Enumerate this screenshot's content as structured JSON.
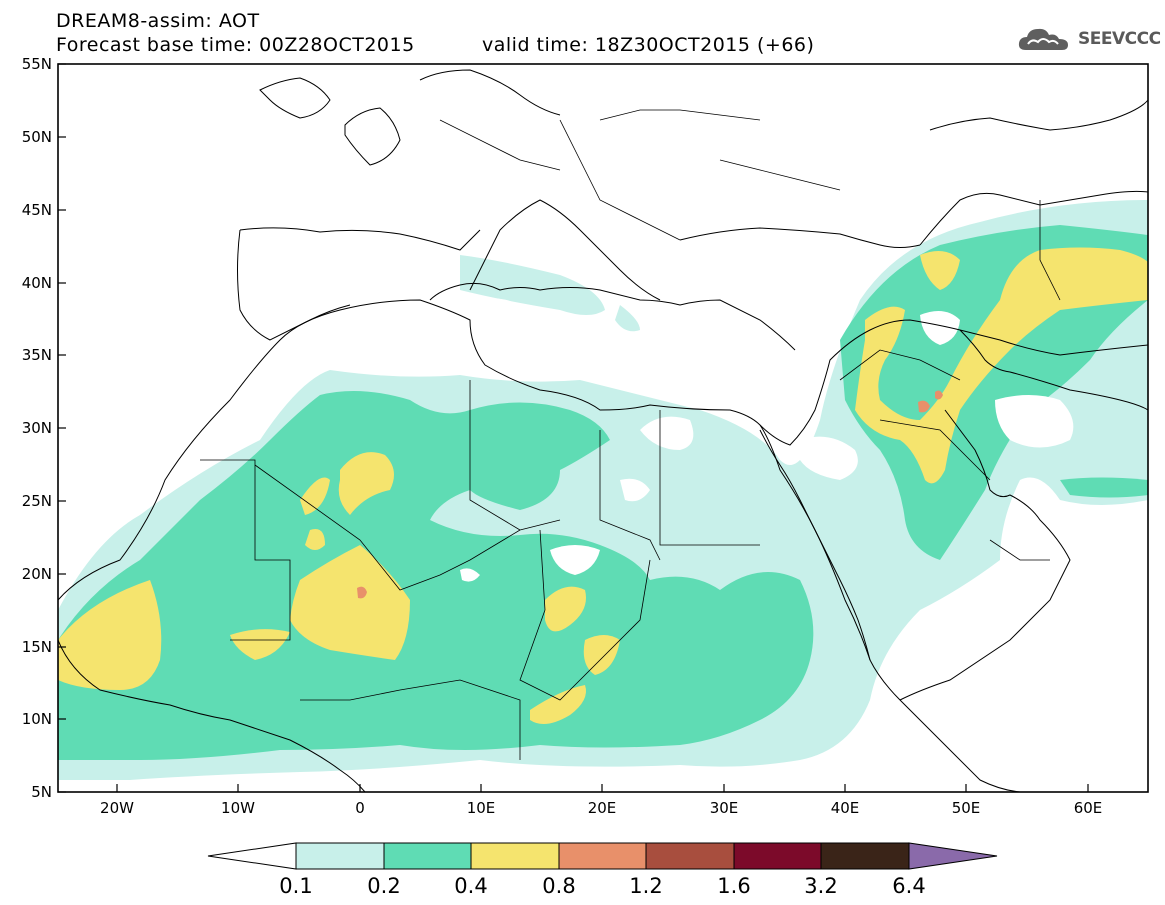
{
  "header": {
    "title": "DREAM8-assim: AOT",
    "base_time": "Forecast base time: 00Z28OCT2015",
    "valid_time": "valid time: 18Z30OCT2015 (+66)"
  },
  "logo": {
    "text": "SEEVCCC",
    "icon": "cloud-icon"
  },
  "map": {
    "lat_labels": [
      "55N",
      "50N",
      "45N",
      "40N",
      "35N",
      "30N",
      "25N",
      "20N",
      "15N",
      "10N",
      "5N"
    ],
    "lon_labels": [
      "20W",
      "10W",
      "0",
      "10E",
      "20E",
      "30E",
      "40E",
      "50E",
      "60E"
    ]
  },
  "legend": {
    "labels": [
      "0.1",
      "0.2",
      "0.4",
      "0.8",
      "1.2",
      "1.6",
      "3.2",
      "6.4"
    ],
    "colors": [
      "#ffffff",
      "#c8f0ea",
      "#5fdcb4",
      "#f5e46e",
      "#e8906a",
      "#a84e3e",
      "#7c0a2a",
      "#3a2418",
      "#8a6aaa"
    ]
  }
}
